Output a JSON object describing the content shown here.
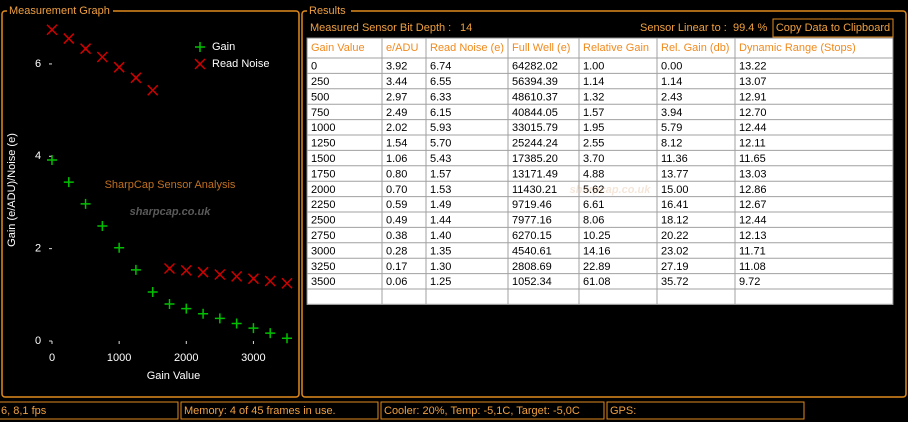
{
  "left_panel": {
    "title": "Measurement Graph"
  },
  "chart_data": {
    "type": "scatter",
    "annotation": "SharpCap Sensor Analysis",
    "watermark": "sharpcap.co.uk",
    "x_label": "Gain Value",
    "y_label": "Gain (e/ADU)/Noise (e)",
    "x": [
      0,
      250,
      500,
      750,
      1000,
      1250,
      1500,
      1750,
      2000,
      2250,
      2500,
      2750,
      3000,
      3250,
      3500
    ],
    "series": [
      {
        "name": "Gain",
        "color": "#00c000",
        "marker": "plus",
        "values": [
          3.92,
          3.44,
          2.97,
          2.49,
          2.02,
          1.54,
          1.06,
          0.8,
          0.7,
          0.59,
          0.49,
          0.38,
          0.28,
          0.17,
          0.06
        ]
      },
      {
        "name": "Read Noise",
        "color": "#d00000",
        "marker": "cross",
        "values": [
          6.74,
          6.55,
          6.33,
          6.15,
          5.93,
          5.7,
          5.43,
          1.57,
          1.53,
          1.49,
          1.44,
          1.4,
          1.35,
          1.3,
          1.25
        ]
      }
    ],
    "xlim": [
      0,
      3500
    ],
    "xticks": [
      0,
      1000,
      2000,
      3000
    ],
    "ylim": [
      0,
      6.8
    ],
    "yticks": [
      0,
      2,
      4,
      6
    ],
    "legend": "upper right"
  },
  "results": {
    "title": "Results",
    "bit_depth_label": "Measured Sensor Bit Depth :",
    "bit_depth": "14",
    "linear_label": "Sensor Linear to :",
    "linear_value": "99.4 %",
    "copy_button": "Copy Data to Clipboard",
    "watermark": "sharpcap.co.uk",
    "table": {
      "headers": [
        "Gain Value",
        "e/ADU",
        "Read Noise (e)",
        "Full Well (e)",
        "Relative Gain",
        "Rel. Gain (db)",
        "Dynamic Range (Stops)"
      ],
      "rows": [
        [
          "0",
          "3.92",
          "6.74",
          "64282.02",
          "1.00",
          "0.00",
          "13.22"
        ],
        [
          "250",
          "3.44",
          "6.55",
          "56394.39",
          "1.14",
          "1.14",
          "13.07"
        ],
        [
          "500",
          "2.97",
          "6.33",
          "48610.37",
          "1.32",
          "2.43",
          "12.91"
        ],
        [
          "750",
          "2.49",
          "6.15",
          "40844.05",
          "1.57",
          "3.94",
          "12.70"
        ],
        [
          "1000",
          "2.02",
          "5.93",
          "33015.79",
          "1.95",
          "5.79",
          "12.44"
        ],
        [
          "1250",
          "1.54",
          "5.70",
          "25244.24",
          "2.55",
          "8.12",
          "12.11"
        ],
        [
          "1500",
          "1.06",
          "5.43",
          "17385.20",
          "3.70",
          "11.36",
          "11.65"
        ],
        [
          "1750",
          "0.80",
          "1.57",
          "13171.49",
          "4.88",
          "13.77",
          "13.03"
        ],
        [
          "2000",
          "0.70",
          "1.53",
          "11430.21",
          "5.62",
          "15.00",
          "12.86"
        ],
        [
          "2250",
          "0.59",
          "1.49",
          "9719.46",
          "6.61",
          "16.41",
          "12.67"
        ],
        [
          "2500",
          "0.49",
          "1.44",
          "7977.16",
          "8.06",
          "18.12",
          "12.44"
        ],
        [
          "2750",
          "0.38",
          "1.40",
          "6270.15",
          "10.25",
          "20.22",
          "12.13"
        ],
        [
          "3000",
          "0.28",
          "1.35",
          "4540.61",
          "14.16",
          "23.02",
          "11.71"
        ],
        [
          "3250",
          "0.17",
          "1.30",
          "2808.69",
          "22.89",
          "27.19",
          "11.08"
        ],
        [
          "3500",
          "0.06",
          "1.25",
          "1052.34",
          "61.08",
          "35.72",
          "9.72"
        ]
      ]
    }
  },
  "status_bar": [
    "6, 8,1 fps",
    "Memory: 4 of 45 frames in use.",
    "Cooler: 20%, Temp: -5,1C, Target: -5,0C",
    "GPS:"
  ]
}
